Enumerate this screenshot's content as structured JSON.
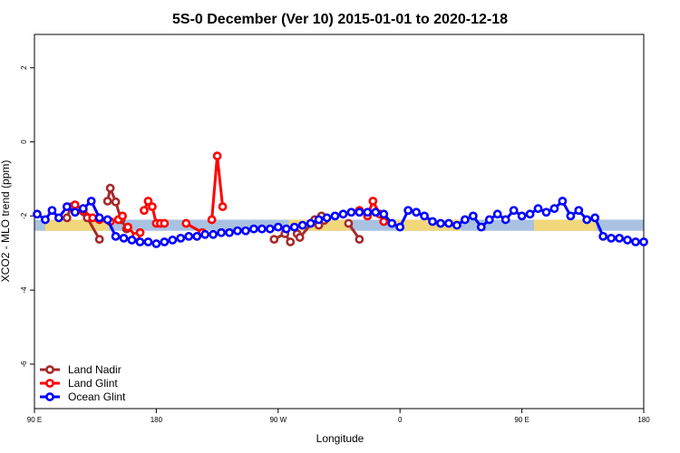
{
  "chart_data": {
    "type": "line",
    "title": "5S-0 December (Ver 10)   2015-01-01 to 2020-12-18",
    "xlabel": "Longitude",
    "ylabel": "XCO2 - MLO trend (ppm)",
    "xlim": [
      90,
      540
    ],
    "ylim": [
      -7.2,
      2.9
    ],
    "yticks": [
      2,
      0,
      -2,
      -4,
      -6
    ],
    "xticks": [
      {
        "value": 90,
        "label": "90 E"
      },
      {
        "value": 180,
        "label": "180"
      },
      {
        "value": 270,
        "label": "90 W"
      },
      {
        "value": 360,
        "label": "0"
      },
      {
        "value": 450,
        "label": "90 E"
      },
      {
        "value": 540,
        "label": "180"
      }
    ],
    "background_band": {
      "y_range": [
        -2.4,
        -2.1
      ],
      "color": "#a9c2e2",
      "land_color": "#f2d77a",
      "land_segments": [
        [
          98,
          145
        ],
        [
          278,
          323
        ],
        [
          357,
          405
        ],
        [
          459,
          505
        ]
      ]
    },
    "legend_position": "bottom-left",
    "series": [
      {
        "name": "Land Nadir",
        "color": "#a52a2a",
        "x": [
          114,
          117,
          129,
          138,
          144,
          146,
          150,
          154,
          158,
          267,
          275,
          279,
          284,
          286,
          297,
          300,
          302,
          304,
          322,
          330
        ],
        "y": [
          -2.05,
          -1.75,
          -2.05,
          -2.63,
          -1.6,
          -1.25,
          -1.62,
          -2.1,
          -2.35,
          -2.63,
          -2.48,
          -2.7,
          -2.48,
          -2.58,
          -2.1,
          -2.25,
          -2.0,
          -2.12,
          -2.2,
          -2.63
        ],
        "segments": [
          [
            0,
            1,
            2,
            3
          ],
          [
            4,
            5,
            6,
            7,
            8
          ],
          [
            9,
            10,
            11
          ],
          [
            12,
            13,
            14,
            15
          ],
          [
            16,
            17
          ],
          [
            18,
            19
          ]
        ]
      },
      {
        "name": "Land Glint",
        "color": "#ff0000",
        "x": [
          120,
          126,
          133,
          138,
          146,
          152,
          155,
          159,
          165,
          168,
          171,
          174,
          177,
          180,
          183,
          186,
          202,
          214,
          221,
          225,
          229,
          330,
          336,
          340,
          345,
          348
        ],
        "y": [
          -1.7,
          -1.85,
          -2.05,
          -2.1,
          -2.15,
          -2.1,
          -2.0,
          -2.3,
          -2.55,
          -2.45,
          -1.85,
          -1.6,
          -1.75,
          -2.2,
          -2.2,
          -2.2,
          -2.2,
          -2.45,
          -2.1,
          -0.38,
          -1.75,
          -1.85,
          -2.0,
          -1.6,
          -1.95,
          -2.15
        ],
        "segments": [
          [
            0,
            1,
            2,
            3,
            4,
            5,
            6
          ],
          [
            7,
            8,
            9
          ],
          [
            10,
            11,
            12,
            13,
            14,
            15
          ],
          [
            16,
            17
          ],
          [
            18,
            19,
            20
          ],
          [
            21,
            22,
            23,
            24,
            25
          ]
        ]
      },
      {
        "name": "Ocean Glint",
        "color": "#0000ff",
        "x": [
          92,
          98,
          103,
          108,
          114,
          120,
          126,
          132,
          138,
          144,
          150,
          156,
          162,
          168,
          174,
          180,
          186,
          192,
          198,
          204,
          210,
          216,
          222,
          228,
          234,
          240,
          246,
          252,
          258,
          264,
          270,
          276,
          282,
          288,
          294,
          300,
          306,
          312,
          318,
          324,
          330,
          336,
          342,
          348,
          354,
          360,
          366,
          372,
          378,
          384,
          390,
          396,
          402,
          408,
          414,
          420,
          426,
          432,
          438,
          444,
          450,
          456,
          462,
          468,
          474,
          480,
          486,
          492,
          498,
          504,
          510,
          516,
          522,
          528,
          534,
          540
        ],
        "y": [
          -1.95,
          -2.1,
          -1.85,
          -2.05,
          -1.75,
          -1.9,
          -1.8,
          -1.6,
          -2.05,
          -2.1,
          -2.55,
          -2.6,
          -2.65,
          -2.7,
          -2.7,
          -2.75,
          -2.7,
          -2.65,
          -2.6,
          -2.55,
          -2.55,
          -2.5,
          -2.5,
          -2.45,
          -2.45,
          -2.4,
          -2.4,
          -2.35,
          -2.35,
          -2.35,
          -2.3,
          -2.35,
          -2.3,
          -2.25,
          -2.2,
          -2.1,
          -2.05,
          -2.0,
          -1.95,
          -1.9,
          -1.9,
          -1.9,
          -1.9,
          -1.95,
          -2.2,
          -2.3,
          -1.85,
          -1.9,
          -2.0,
          -2.15,
          -2.2,
          -2.2,
          -2.25,
          -2.1,
          -2.0,
          -2.3,
          -2.1,
          -1.95,
          -2.1,
          -1.85,
          -2.0,
          -1.95,
          -1.8,
          -1.9,
          -1.8,
          -1.6,
          -2.0,
          -1.85,
          -2.1,
          -2.05,
          -2.55,
          -2.6,
          -2.6,
          -2.65,
          -2.7,
          -2.7
        ],
        "segments": []
      }
    ]
  }
}
